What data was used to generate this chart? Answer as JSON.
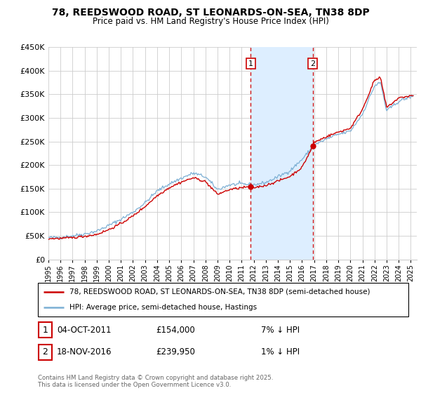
{
  "title": "78, REEDSWOOD ROAD, ST LEONARDS-ON-SEA, TN38 8DP",
  "subtitle": "Price paid vs. HM Land Registry's House Price Index (HPI)",
  "legend_label_red": "78, REEDSWOOD ROAD, ST LEONARDS-ON-SEA, TN38 8DP (semi-detached house)",
  "legend_label_blue": "HPI: Average price, semi-detached house, Hastings",
  "transaction1": {
    "label": "1",
    "date": "04-OCT-2011",
    "price": "£154,000",
    "hpi": "7% ↓ HPI"
  },
  "transaction2": {
    "label": "2",
    "date": "18-NOV-2016",
    "price": "£239,950",
    "hpi": "1% ↓ HPI"
  },
  "vline1_year": 2011.75,
  "vline2_year": 2016.88,
  "shade_start": 2011.75,
  "shade_end": 2016.88,
  "dot1_year": 2011.75,
  "dot1_value": 154000,
  "dot2_year": 2016.88,
  "dot2_value": 239950,
  "ylim_min": 0,
  "ylim_max": 450000,
  "xlim_min": 1995,
  "xlim_max": 2025.5,
  "red_color": "#cc0000",
  "blue_color": "#7bafd4",
  "shade_color": "#ddeeff",
  "background_color": "#ffffff",
  "grid_color": "#cccccc",
  "footer": "Contains HM Land Registry data © Crown copyright and database right 2025.\nThis data is licensed under the Open Government Licence v3.0."
}
